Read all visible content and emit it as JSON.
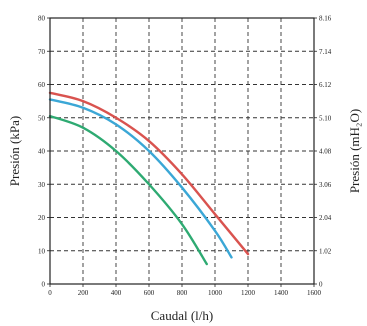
{
  "chart_data": {
    "type": "line",
    "title": "",
    "xlabel": "Caudal (l/h)",
    "ylabel": "Presión (kPa)",
    "y2label": "Presión (mH₂O)",
    "xlim": [
      0,
      1600
    ],
    "ylim": [
      0,
      80
    ],
    "y2lim": [
      0,
      8.16
    ],
    "x_ticks": [
      0,
      200,
      400,
      600,
      800,
      1000,
      1200,
      1400,
      1600
    ],
    "y_ticks": [
      0,
      10,
      20,
      30,
      40,
      50,
      60,
      70,
      80
    ],
    "y2_ticks": [
      "0",
      "1.02",
      "2.04",
      "3.06",
      "4.08",
      "5.10",
      "6.12",
      "7.14",
      "8.16"
    ],
    "grid": true,
    "grid_style": "dashed",
    "legend": "none",
    "series": [
      {
        "color": "#d9534f",
        "x": [
          0,
          200,
          400,
          600,
          800,
          1000,
          1200
        ],
        "y": [
          57.5,
          55,
          50,
          43,
          33,
          21,
          9
        ]
      },
      {
        "color": "#3ba7d6",
        "x": [
          0,
          200,
          400,
          600,
          800,
          1000,
          1100
        ],
        "y": [
          55.5,
          53,
          48,
          40,
          29,
          16,
          8
        ]
      },
      {
        "color": "#2eaa72",
        "x": [
          0,
          200,
          400,
          600,
          800,
          950
        ],
        "y": [
          50.5,
          47,
          40,
          30,
          18,
          6
        ]
      }
    ]
  }
}
